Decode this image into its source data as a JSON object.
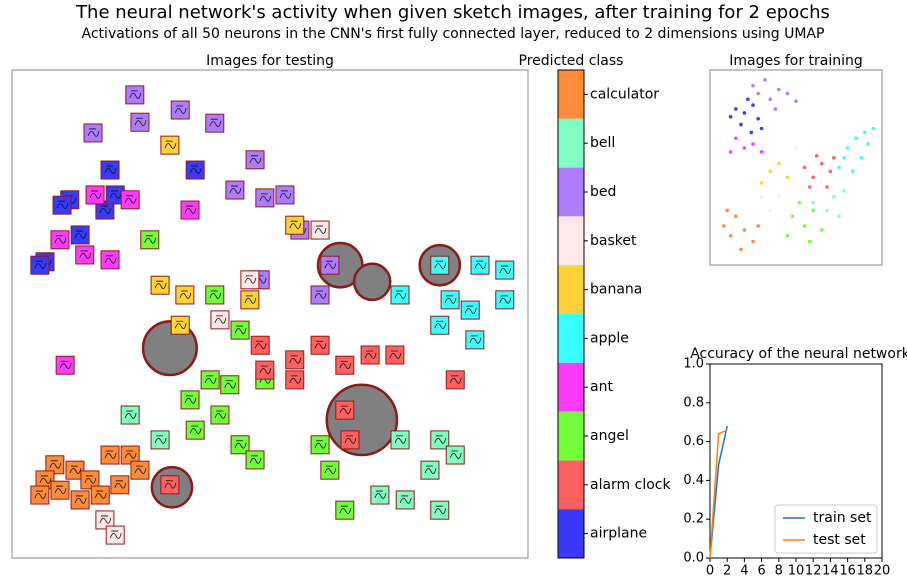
{
  "title": "The neural network's activity when given sketch images, after training for 2 epochs",
  "subtitle": "Activations of all 50 neurons in the  CNN's first fully connected layer, reduced to 2 dimensions using UMAP",
  "chart_data": [
    {
      "type": "image-scatter",
      "title": "Images for testing",
      "colorbar_label": "Predicted class",
      "categories": [
        "calculator",
        "bell",
        "bed",
        "basket",
        "banana",
        "apple",
        "ant",
        "angel",
        "alarm clock",
        "airplane"
      ],
      "colors": [
        "#ff8c3a",
        "#80ffc0",
        "#b07cff",
        "#ffe8e8",
        "#ffd23a",
        "#3affff",
        "#ff3aff",
        "#70ff3a",
        "#ff6060",
        "#3a3aff"
      ],
      "xlim": [
        0,
        100
      ],
      "ylim": [
        0,
        100
      ],
      "x": [
        19,
        11.2,
        18,
        35.5,
        6.4,
        13.2,
        9.7,
        5.4,
        20,
        16.1,
        22.9,
        34.5,
        10.3,
        19,
        14.1,
        9.3,
        23.8,
        15.7,
        24.8,
        39.3,
        47.1,
        43.2,
        49,
        52.9,
        55.8,
        48.1,
        59.7,
        61.6,
        32.6,
        30.6,
        28.7,
        33.5,
        32.6,
        54.8,
        46.1,
        82.9,
        75.2,
        81,
        71.3,
        76.2,
        85.9,
        82.9,
        22.9,
        28.7,
        82.9,
        90.7,
        95.5,
        84.9,
        88.8,
        95.5,
        82.9,
        89.7,
        75.2,
        8.3,
        6.4,
        9.3,
        12.2,
        15.1,
        19,
        22.9,
        5.4,
        17.1,
        24.8,
        13.2,
        20.9,
        26.7,
        39.3,
        44.2,
        38.4,
        42.2,
        34.5,
        35.5,
        40.3,
        44.2,
        47.1,
        49,
        61.6,
        64.5,
        59.7,
        48.1,
        54.8,
        54.8,
        59.7,
        64.5,
        69.4,
        74.2,
        30.6,
        64.5,
        65.5,
        85.9,
        49,
        18,
        20,
        46.1,
        59.7,
        40.3
      ],
      "y": [
        79.5,
        73.4,
        71.3,
        79.5,
        60.7,
        66.2,
        72.3,
        60,
        74.4,
        74.4,
        73.4,
        71.3,
        39.5,
        61.1,
        62.1,
        65.2,
        94.9,
        87.1,
        89.3,
        89.1,
        81.6,
        75.4,
        73.8,
        74.4,
        67.2,
        57,
        53.9,
        60,
        91.8,
        84.6,
        55.9,
        53.9,
        47.7,
        68.2,
        52.9,
        24.2,
        24.2,
        18,
        12.9,
        11.9,
        21.1,
        9.8,
        29.3,
        24.2,
        60,
        60,
        59,
        52.9,
        50.8,
        52.9,
        47.7,
        44.7,
        53.9,
        19.1,
        16,
        13.9,
        18,
        16,
        21.1,
        21.1,
        12.9,
        12.9,
        18,
        11.9,
        15,
        65.2,
        53.9,
        46.7,
        36.5,
        35.5,
        32.4,
        26.2,
        29.3,
        23.2,
        20.1,
        36.5,
        18,
        9.8,
        23.2,
        43.6,
        36.5,
        40.6,
        43.6,
        39.5,
        41.6,
        41.6,
        15,
        30.3,
        24.2,
        36.5,
        38.5,
        7.8,
        4.7,
        57,
        67.2,
        48.8
      ],
      "classes": [
        9,
        9,
        9,
        9,
        9,
        9,
        9,
        9,
        9,
        6,
        6,
        6,
        6,
        6,
        6,
        6,
        2,
        2,
        2,
        2,
        2,
        2,
        2,
        2,
        2,
        2,
        2,
        2,
        2,
        4,
        4,
        4,
        4,
        4,
        4,
        1,
        1,
        1,
        1,
        1,
        1,
        1,
        1,
        1,
        5,
        5,
        5,
        5,
        5,
        5,
        5,
        5,
        5,
        0,
        0,
        0,
        0,
        0,
        0,
        0,
        0,
        0,
        0,
        0,
        0,
        7,
        7,
        7,
        7,
        7,
        7,
        7,
        7,
        7,
        7,
        7,
        7,
        7,
        7,
        8,
        8,
        8,
        8,
        8,
        8,
        8,
        8,
        8,
        8,
        8,
        8,
        3,
        3,
        3,
        3,
        3
      ],
      "circled": {
        "x": [
          63.6,
          69.8,
          82.9,
          30.6,
          67.8,
          31
        ],
        "y": [
          60,
          56.6,
          60,
          43,
          28.3,
          14.5
        ],
        "sizes": [
          4.3,
          3.5,
          3.9,
          5.2,
          6.8,
          3.9
        ]
      }
    },
    {
      "type": "dot-scatter",
      "title": "Images for training",
      "xlim": [
        0,
        100
      ],
      "ylim": [
        0,
        100
      ],
      "x": [
        15,
        20,
        25,
        18,
        28,
        22,
        12,
        30,
        24,
        25,
        32,
        40,
        35,
        45,
        28,
        38,
        50,
        15,
        20,
        25,
        12,
        30,
        80,
        85,
        90,
        95,
        78,
        88,
        83,
        92,
        75,
        55,
        60,
        65,
        70,
        58,
        68,
        62,
        72,
        48,
        55,
        60,
        52,
        65,
        45,
        58,
        8,
        12,
        15,
        20,
        25,
        10,
        18,
        28,
        35,
        40,
        45,
        30,
        60,
        68,
        72,
        75,
        78,
        40,
        35,
        50,
        30
      ],
      "y": [
        80,
        78,
        82,
        72,
        75,
        85,
        76,
        70,
        68,
        92,
        95,
        90,
        85,
        88,
        88,
        80,
        84,
        65,
        60,
        62,
        58,
        58,
        60,
        65,
        68,
        70,
        55,
        55,
        48,
        62,
        50,
        50,
        45,
        52,
        48,
        40,
        40,
        56,
        55,
        25,
        20,
        28,
        32,
        18,
        15,
        12,
        20,
        15,
        25,
        18,
        12,
        28,
        8,
        20,
        48,
        52,
        45,
        42,
        32,
        28,
        35,
        25,
        38,
        35,
        28,
        60,
        35
      ],
      "classes": [
        9,
        9,
        9,
        9,
        9,
        9,
        9,
        9,
        9,
        2,
        2,
        2,
        2,
        2,
        2,
        2,
        2,
        6,
        6,
        6,
        6,
        6,
        5,
        5,
        5,
        5,
        5,
        5,
        5,
        5,
        5,
        8,
        8,
        8,
        8,
        8,
        8,
        8,
        8,
        7,
        7,
        7,
        7,
        7,
        7,
        7,
        0,
        0,
        0,
        0,
        0,
        0,
        0,
        0,
        4,
        4,
        4,
        4,
        1,
        1,
        1,
        1,
        1,
        3,
        3,
        3,
        3
      ]
    },
    {
      "type": "line",
      "title": "Accuracy of the neural network",
      "x": [
        0,
        1,
        2
      ],
      "series": [
        {
          "name": "train set",
          "color": "#1f77b4",
          "values": [
            0,
            0.48,
            0.68
          ]
        },
        {
          "name": "test set",
          "color": "#ff7f0e",
          "values": [
            0,
            0.64,
            0.66
          ]
        }
      ],
      "xlim": [
        0,
        20
      ],
      "ylim": [
        0,
        1
      ],
      "xticks": [
        0,
        2,
        4,
        6,
        8,
        10,
        12,
        14,
        16,
        18,
        20
      ],
      "yticks": [
        {
          "value": 0,
          "label": "0.0"
        },
        0.2,
        0.4,
        0.6,
        0.8,
        {
          "value": 1,
          "label": "1.0"
        }
      ],
      "legend": "lower right"
    }
  ]
}
